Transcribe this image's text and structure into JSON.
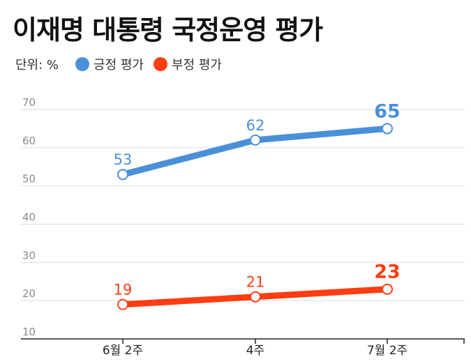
{
  "chart_data": {
    "type": "line",
    "title": "이재명 대통령 국정운영 평가",
    "unit_label": "단위: %",
    "categories": [
      "6월 2주",
      "4주",
      "7월 2주"
    ],
    "yticks": [
      10,
      20,
      30,
      40,
      50,
      60,
      70
    ],
    "ylim": [
      10,
      70
    ],
    "grid": true,
    "legend_position": "top-left",
    "series": [
      {
        "name": "긍정 평가",
        "values": [
          53,
          62,
          65
        ],
        "labels": [
          "53",
          "62",
          "65"
        ],
        "color": "#4a90d9"
      },
      {
        "name": "부정 평가",
        "values": [
          19,
          21,
          23
        ],
        "labels": [
          "19",
          "21",
          "23"
        ],
        "color": "#ff3d12"
      }
    ]
  }
}
